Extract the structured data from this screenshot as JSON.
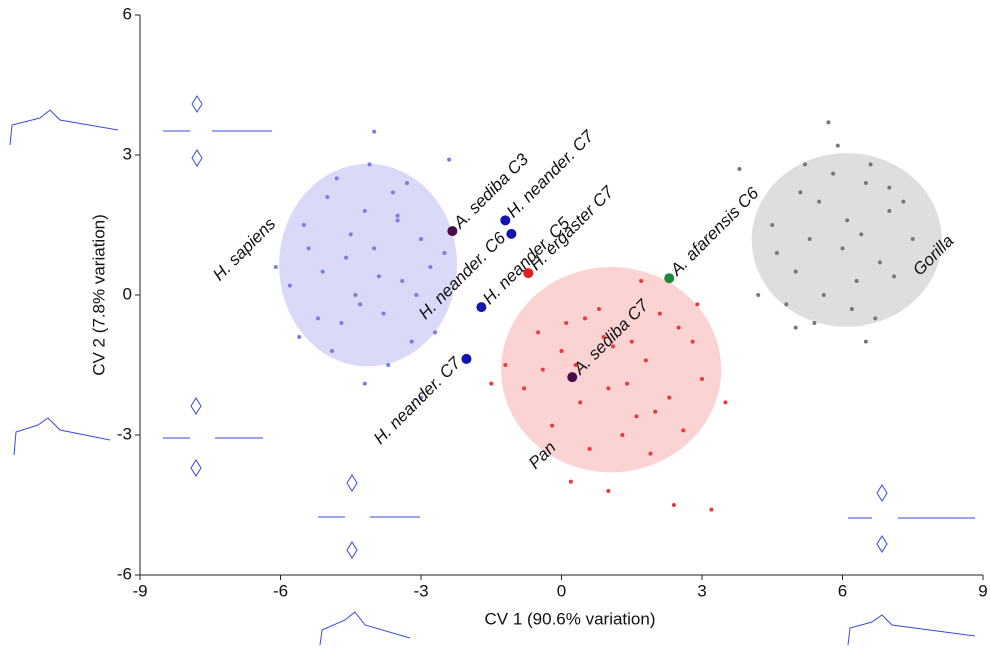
{
  "chart_data": {
    "type": "scatter",
    "xlabel": "CV 1 (90.6% variation)",
    "ylabel": "CV 2 (7.8% variation)",
    "xlim": [
      -9,
      9
    ],
    "ylim": [
      -6,
      6
    ],
    "xticks": [
      -9,
      -6,
      -3,
      0,
      3,
      6,
      9
    ],
    "yticks": [
      -6,
      -3,
      0,
      3,
      6
    ],
    "series": [
      {
        "name": "H. sapiens",
        "color": "#7b7be8",
        "ellipse_color": "#dadaf8",
        "ellipse": {
          "cx": -4.13,
          "cy": 0.64,
          "rx": 1.9,
          "ry": 2.17
        },
        "x": [
          -5.5,
          -5.0,
          -4.6,
          -4.2,
          -3.8,
          -3.4,
          -3.0,
          -2.7,
          -5.8,
          -5.2,
          -4.8,
          -4.4,
          -4.0,
          -3.6,
          -3.2,
          -2.8,
          -5.4,
          -4.9,
          -4.3,
          -3.9,
          -3.5,
          -3.1,
          -4.7,
          -4.1,
          -3.7,
          -3.3,
          -5.1,
          -4.5,
          -2.5,
          -6.1,
          -4.0,
          -3.0,
          -5.6,
          -2.4,
          -4.2,
          -3.5
        ],
        "y": [
          1.5,
          2.1,
          0.8,
          1.8,
          -0.4,
          0.3,
          1.2,
          -0.8,
          0.2,
          -0.5,
          2.5,
          0.0,
          1.0,
          2.2,
          -1.0,
          0.6,
          1.0,
          -1.2,
          -0.2,
          0.4,
          1.6,
          0.0,
          -0.6,
          2.8,
          -1.5,
          2.4,
          0.5,
          1.3,
          0.9,
          0.6,
          3.5,
          -2.2,
          -0.9,
          2.9,
          -1.9,
          1.7
        ]
      },
      {
        "name": "Pan",
        "color": "#e83a3a",
        "ellipse_color": "#fbd3d3",
        "ellipse": {
          "cx": 1.06,
          "cy": -1.6,
          "rx": 2.35,
          "ry": 2.2
        },
        "x": [
          -0.5,
          0.0,
          0.5,
          1.0,
          1.5,
          2.0,
          2.5,
          3.0,
          -0.8,
          -0.2,
          0.3,
          0.8,
          1.3,
          1.8,
          2.3,
          2.8,
          -0.4,
          0.1,
          0.6,
          1.1,
          1.6,
          2.1,
          2.6,
          0.4,
          0.9,
          1.4,
          1.9,
          -1.2,
          3.5,
          1.0,
          2.4,
          3.2,
          -1.5,
          0.2,
          1.7,
          2.9
        ],
        "y": [
          -0.8,
          -1.2,
          -0.5,
          -2.0,
          -1.0,
          -2.5,
          -0.7,
          -1.8,
          -2.0,
          -2.8,
          -1.5,
          -0.3,
          -3.0,
          -1.4,
          -2.2,
          -1.0,
          -1.6,
          -0.6,
          -3.3,
          -1.1,
          -2.6,
          -0.4,
          -2.9,
          -2.3,
          -0.9,
          -1.9,
          -3.4,
          -1.5,
          -2.3,
          -4.2,
          -4.5,
          -4.6,
          -1.9,
          -4.0,
          0.3,
          -0.2
        ]
      },
      {
        "name": "Gorilla",
        "color": "#777777",
        "ellipse_color": "#dedede",
        "ellipse": {
          "cx": 6.09,
          "cy": 1.18,
          "rx": 2.03,
          "ry": 1.86
        },
        "x": [
          4.5,
          5.0,
          5.5,
          6.0,
          6.5,
          7.0,
          7.5,
          4.8,
          5.3,
          5.8,
          6.3,
          6.8,
          7.3,
          5.1,
          5.6,
          6.1,
          6.6,
          7.1,
          4.6,
          5.4,
          6.2,
          7.0,
          5.9,
          6.4,
          5.2,
          6.7,
          3.8,
          5.7,
          6.5,
          5.0,
          4.2
        ],
        "y": [
          1.5,
          0.5,
          2.0,
          1.0,
          2.4,
          1.8,
          1.2,
          -0.2,
          1.2,
          2.6,
          0.3,
          0.7,
          2.0,
          2.2,
          0.0,
          1.6,
          2.8,
          0.4,
          0.9,
          -0.6,
          -0.3,
          2.3,
          3.2,
          1.3,
          2.8,
          -0.5,
          2.7,
          3.7,
          -1.0,
          -0.7,
          0.0
        ]
      }
    ],
    "specimens": [
      {
        "name": "A. sediba C3",
        "color": "#4a0a4a",
        "x": -2.33,
        "y": 1.37
      },
      {
        "name": "H. neander. C7",
        "color": "#1414b4",
        "x": -1.2,
        "y": 1.6
      },
      {
        "name": "H. neander. C6",
        "color": "#1414b4",
        "x": -1.07,
        "y": 1.31
      },
      {
        "name": "H. ergaster C7",
        "color": "#e02020",
        "x": -0.71,
        "y": 0.47
      },
      {
        "name": "H. neander. C5",
        "color": "#1414b4",
        "x": -1.71,
        "y": -0.26
      },
      {
        "name": "H. neander. C7",
        "color": "#1414b4",
        "x": -2.03,
        "y": -1.37
      },
      {
        "name": "A. sediba C7",
        "color": "#4a0a4a",
        "x": 0.23,
        "y": -1.76
      },
      {
        "name": "A. afarensis C6",
        "color": "#1a8a3a",
        "x": 2.3,
        "y": 0.36
      }
    ]
  }
}
